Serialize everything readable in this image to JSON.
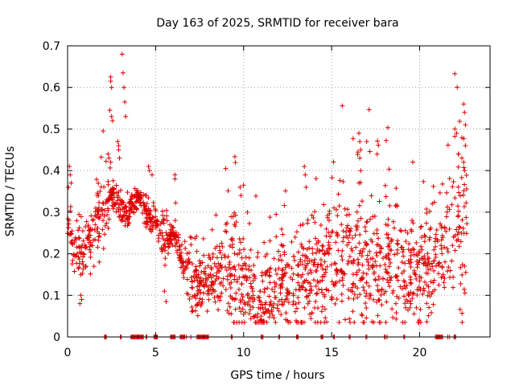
{
  "chart_data": {
    "type": "scatter",
    "title": "Day 163 of 2025, SRMTID for receiver bara",
    "xlabel": "GPS time / hours",
    "ylabel": "SRMTID / TECUs",
    "xlim": [
      0,
      24
    ],
    "ylim": [
      0,
      0.7
    ],
    "x_ticks": [
      0,
      5,
      10,
      15,
      20
    ],
    "x_tick_labels": [
      "0",
      "5",
      "10",
      "15",
      "20"
    ],
    "y_ticks": [
      0,
      0.1,
      0.2,
      0.3,
      0.4,
      0.5,
      0.6,
      0.7
    ],
    "y_tick_labels": [
      "0",
      "0.1",
      "0.2",
      "0.3",
      "0.4",
      "0.5",
      "0.6",
      "0.7"
    ],
    "grid": true,
    "legend": "none",
    "colors": {
      "marker": "#dd0000",
      "grid": "#a0a0a0",
      "axis": "#000000"
    },
    "series": [
      {
        "name": "SRMTID",
        "marker": "plus",
        "envelope": [
          [
            0.0,
            0.26,
            0.32
          ],
          [
            0.5,
            0.19,
            0.24
          ],
          [
            1.0,
            0.21,
            0.25
          ],
          [
            1.5,
            0.27,
            0.35
          ],
          [
            2.0,
            0.28,
            0.35
          ],
          [
            2.5,
            0.34,
            0.36
          ],
          [
            3.0,
            0.31,
            0.33
          ],
          [
            3.5,
            0.3,
            0.33
          ],
          [
            4.0,
            0.34,
            0.31
          ],
          [
            4.5,
            0.29,
            0.3
          ],
          [
            5.0,
            0.27,
            0.27
          ],
          [
            5.5,
            0.22,
            0.27
          ],
          [
            6.0,
            0.25,
            0.25
          ],
          [
            6.5,
            0.18,
            0.21
          ],
          [
            7.0,
            0.14,
            0.2
          ],
          [
            7.5,
            0.12,
            0.17
          ],
          [
            8.0,
            0.13,
            0.18
          ],
          [
            8.5,
            0.14,
            0.2
          ],
          [
            9.0,
            0.16,
            0.24
          ],
          [
            9.5,
            0.15,
            0.25
          ],
          [
            10.0,
            0.11,
            0.2
          ],
          [
            10.5,
            0.09,
            0.16
          ],
          [
            11.0,
            0.09,
            0.17
          ],
          [
            11.5,
            0.1,
            0.17
          ],
          [
            12.0,
            0.12,
            0.2
          ],
          [
            12.5,
            0.12,
            0.2
          ],
          [
            13.0,
            0.13,
            0.22
          ],
          [
            13.5,
            0.15,
            0.25
          ],
          [
            14.0,
            0.15,
            0.24
          ],
          [
            14.5,
            0.14,
            0.24
          ],
          [
            15.0,
            0.17,
            0.26
          ],
          [
            15.5,
            0.17,
            0.28
          ],
          [
            16.0,
            0.17,
            0.28
          ],
          [
            16.5,
            0.18,
            0.3
          ],
          [
            17.0,
            0.17,
            0.3
          ],
          [
            17.5,
            0.17,
            0.28
          ],
          [
            18.0,
            0.16,
            0.27
          ],
          [
            18.5,
            0.15,
            0.27
          ],
          [
            19.0,
            0.16,
            0.27
          ],
          [
            19.5,
            0.15,
            0.25
          ],
          [
            20.0,
            0.15,
            0.25
          ],
          [
            20.5,
            0.18,
            0.27
          ],
          [
            21.0,
            0.2,
            0.28
          ],
          [
            21.5,
            0.24,
            0.33
          ],
          [
            22.0,
            0.27,
            0.4
          ],
          [
            22.5,
            0.28,
            0.45
          ],
          [
            22.7,
            0.25,
            0.4
          ]
        ],
        "outliers": [
          [
            3.1,
            0.68
          ],
          [
            3.15,
            0.635
          ],
          [
            3.2,
            0.6
          ],
          [
            3.25,
            0.565
          ],
          [
            3.3,
            0.53
          ],
          [
            2.45,
            0.625
          ],
          [
            2.45,
            0.615
          ],
          [
            2.5,
            0.6
          ],
          [
            2.4,
            0.545
          ],
          [
            2.5,
            0.53
          ],
          [
            2.55,
            0.52
          ],
          [
            2.3,
            0.44
          ],
          [
            2.35,
            0.43
          ],
          [
            2.45,
            0.42
          ],
          [
            2.85,
            0.47
          ],
          [
            2.9,
            0.45
          ],
          [
            2.95,
            0.43
          ],
          [
            2.9,
            0.46
          ],
          [
            4.6,
            0.41
          ],
          [
            4.65,
            0.4
          ],
          [
            4.8,
            0.39
          ],
          [
            6.1,
            0.39
          ],
          [
            6.1,
            0.38
          ],
          [
            16.55,
            0.49
          ],
          [
            16.6,
            0.47
          ],
          [
            16.65,
            0.45
          ],
          [
            16.6,
            0.43
          ],
          [
            16.65,
            0.4
          ],
          [
            16.55,
            0.37
          ],
          [
            13.45,
            0.41
          ],
          [
            13.5,
            0.39
          ],
          [
            13.55,
            0.36
          ],
          [
            9.8,
            0.36
          ],
          [
            9.85,
            0.34
          ],
          [
            22.5,
            0.56
          ],
          [
            22.55,
            0.54
          ],
          [
            22.6,
            0.51
          ],
          [
            22.0,
            0.5
          ],
          [
            22.1,
            0.49
          ],
          [
            22.2,
            0.44
          ],
          [
            22.4,
            0.43
          ],
          [
            22.6,
            0.46
          ],
          [
            22.5,
            0.42
          ],
          [
            22.55,
            0.4
          ],
          [
            0.1,
            0.41
          ],
          [
            0.15,
            0.39
          ],
          [
            0.05,
            0.36
          ],
          [
            0.2,
            0.37
          ],
          [
            0.75,
            0.1
          ],
          [
            0.7,
            0.08
          ],
          [
            0.8,
            0.09
          ],
          [
            10.95,
            0.04
          ],
          [
            11.0,
            0.05
          ],
          [
            10.8,
            0.055
          ],
          [
            1.8,
            0.18
          ],
          [
            1.5,
            0.17
          ],
          [
            5.6,
            0.085
          ],
          [
            5.5,
            0.11
          ],
          [
            15.0,
            0.09
          ],
          [
            18.65,
            0.08
          ],
          [
            19.45,
            0.07
          ],
          [
            19.5,
            0.08
          ]
        ],
        "zero_points": [
          2.1,
          2.15,
          2.2,
          3.0,
          3.05,
          3.6,
          3.65,
          3.7,
          3.75,
          3.8,
          3.85,
          3.9,
          3.95,
          4.0,
          4.05,
          4.1,
          4.15,
          4.2,
          4.25,
          4.3,
          4.45,
          4.5,
          4.9,
          4.95,
          5.0,
          5.05,
          5.1,
          5.85,
          5.9,
          5.95,
          6.0,
          6.05,
          6.1,
          6.4,
          6.45,
          6.5,
          6.55,
          6.6,
          6.65,
          6.75,
          7.0,
          7.35,
          7.4,
          7.45,
          7.5,
          7.55,
          7.6,
          7.65,
          7.7,
          7.75,
          7.8,
          7.85,
          7.9,
          7.95,
          8.0,
          9.3,
          9.35,
          11.0,
          11.05,
          11.1,
          12.0,
          12.05,
          13.0,
          13.05,
          13.1,
          14.4,
          14.45,
          14.5,
          15.1,
          15.15,
          16.0,
          16.05,
          16.95,
          17.0,
          18.0,
          18.05,
          18.15,
          19.1,
          19.15,
          20.9,
          20.95,
          21.0,
          21.05,
          21.1,
          21.15,
          21.2,
          21.25,
          21.3,
          21.6,
          21.7,
          21.95,
          22.0,
          22.05
        ]
      }
    ]
  }
}
